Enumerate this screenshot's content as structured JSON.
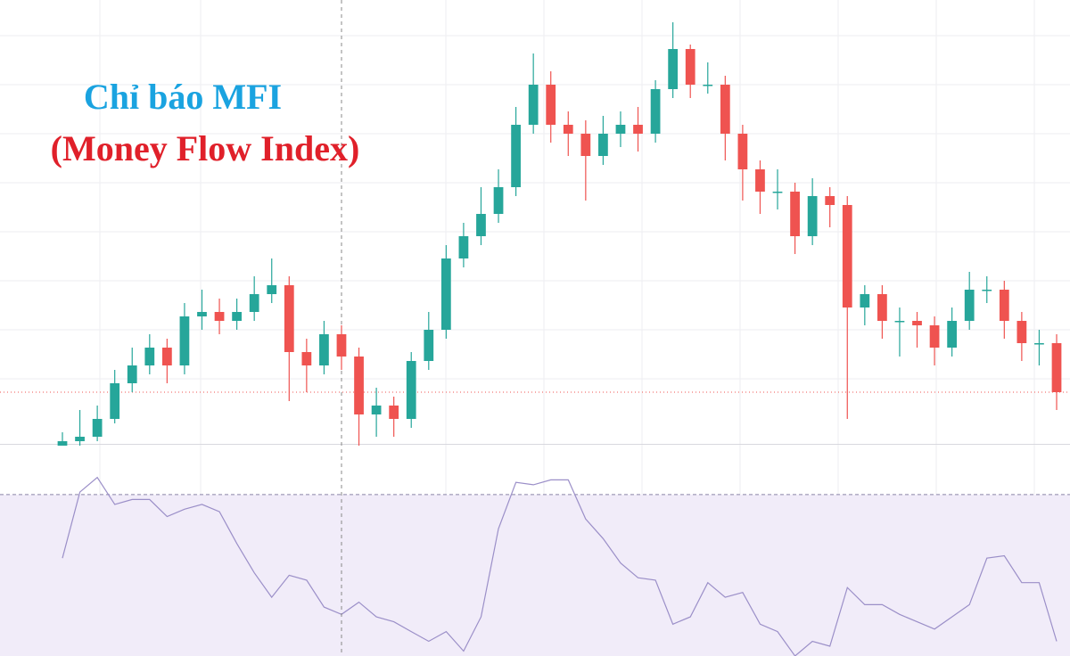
{
  "chart_data": {
    "type": "candlestick",
    "title": "Chỉ báo MFI",
    "subtitle": "(Money Flow Index)",
    "up_color": "#26a69a",
    "down_color": "#ef5350",
    "ylim": [
      0,
      100
    ],
    "open": [
      0,
      1,
      2,
      6,
      14,
      18,
      22,
      18,
      29,
      30,
      28,
      30,
      34,
      36,
      21,
      18,
      25,
      20,
      7,
      9,
      6,
      19,
      26,
      42,
      47,
      52,
      58,
      72,
      81,
      72,
      70,
      65,
      70,
      72,
      70,
      80,
      89,
      81,
      81,
      70,
      62,
      57,
      57,
      47,
      56,
      54,
      31,
      34,
      28,
      28,
      27,
      22,
      28,
      35,
      35,
      28,
      23,
      23
    ],
    "high": [
      3,
      8,
      9,
      17,
      22,
      25,
      24,
      32,
      35,
      33,
      33,
      38,
      42,
      38,
      24,
      28,
      27,
      22,
      13,
      11,
      21,
      30,
      45,
      50,
      58,
      62,
      76,
      88,
      84,
      75,
      73,
      74,
      75,
      76,
      82,
      95,
      90,
      86,
      83,
      72,
      64,
      62,
      59,
      60,
      58,
      56,
      36,
      36,
      31,
      30,
      29,
      31,
      39,
      38,
      37,
      30,
      26,
      25
    ],
    "low": [
      0,
      0,
      1,
      5,
      12,
      16,
      14,
      16,
      26,
      25,
      26,
      28,
      32,
      10,
      12,
      16,
      17,
      0,
      2,
      2,
      4,
      17,
      24,
      40,
      45,
      50,
      56,
      70,
      68,
      65,
      55,
      63,
      67,
      66,
      68,
      78,
      78,
      79,
      64,
      55,
      52,
      53,
      43,
      45,
      49,
      6,
      27,
      24,
      20,
      22,
      18,
      20,
      26,
      32,
      24,
      19,
      18,
      8
    ],
    "close": [
      1,
      2,
      6,
      14,
      18,
      22,
      18,
      29,
      30,
      28,
      30,
      34,
      36,
      21,
      18,
      25,
      20,
      7,
      9,
      6,
      19,
      26,
      42,
      47,
      52,
      58,
      72,
      81,
      72,
      70,
      65,
      70,
      72,
      70,
      80,
      89,
      81,
      81,
      70,
      62,
      57,
      57,
      47,
      56,
      54,
      31,
      34,
      28,
      28,
      27,
      22,
      28,
      35,
      35,
      28,
      23,
      23,
      12
    ],
    "indicator": {
      "type": "line",
      "color": "#9b8fc8",
      "band_color": "#f1ecf9",
      "ylim": [
        14,
        100
      ],
      "level": 80,
      "values": [
        54,
        81,
        87,
        76,
        78,
        78,
        71,
        74,
        76,
        73,
        60,
        48,
        38,
        47,
        45,
        34,
        31,
        36,
        30,
        28,
        24,
        20,
        24,
        16,
        30,
        66,
        85,
        84,
        86,
        86,
        70,
        62,
        52,
        46,
        45,
        27,
        30,
        44,
        38,
        40,
        27,
        24,
        14,
        20,
        18,
        42,
        35,
        35,
        31,
        28,
        25,
        30,
        35,
        54,
        55,
        44,
        44,
        20
      ]
    }
  }
}
